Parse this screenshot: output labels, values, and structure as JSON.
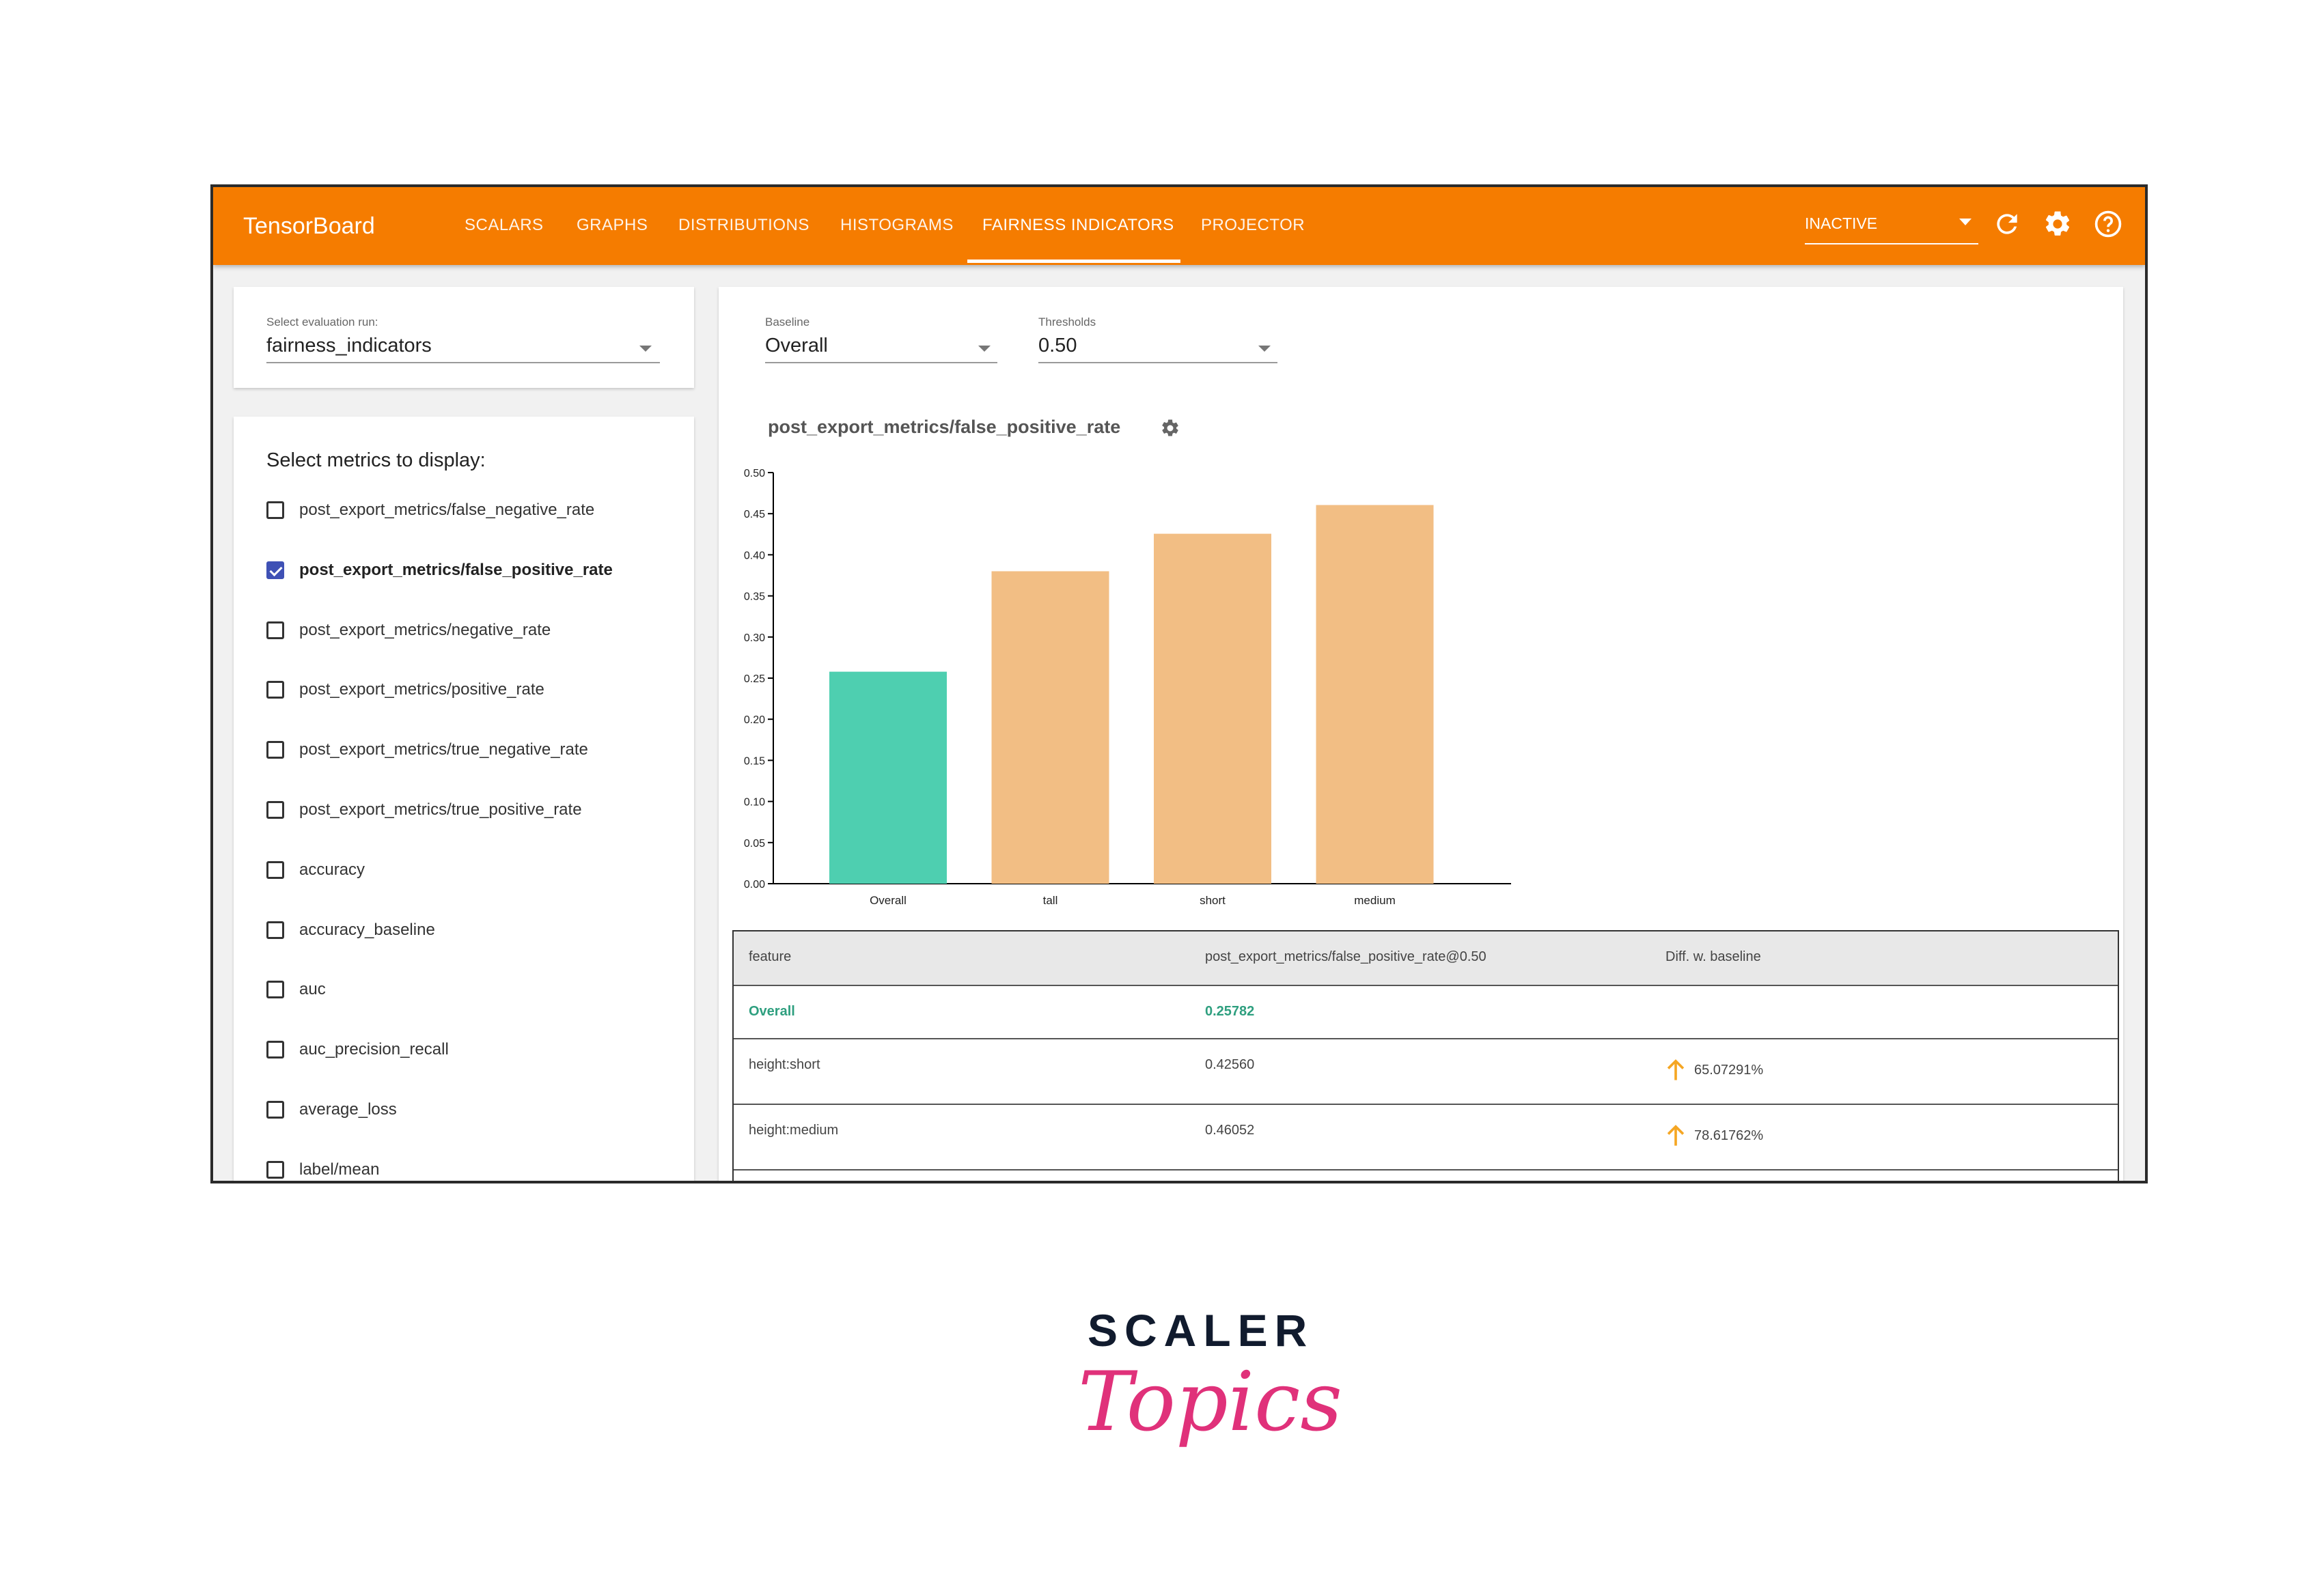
{
  "app": {
    "title": "TensorBoard",
    "tabs": [
      "SCALARS",
      "GRAPHS",
      "DISTRIBUTIONS",
      "HISTOGRAMS",
      "FAIRNESS INDICATORS",
      "PROJECTOR"
    ],
    "active_tab": "FAIRNESS INDICATORS",
    "run_status": "INACTIVE",
    "icons": [
      "refresh-icon",
      "settings-icon",
      "help-icon"
    ]
  },
  "eval_run": {
    "label": "Select evaluation run:",
    "value": "fairness_indicators"
  },
  "metrics": {
    "title": "Select metrics to display:",
    "items": [
      {
        "label": "post_export_metrics/false_negative_rate",
        "checked": false
      },
      {
        "label": "post_export_metrics/false_positive_rate",
        "checked": true
      },
      {
        "label": "post_export_metrics/negative_rate",
        "checked": false
      },
      {
        "label": "post_export_metrics/positive_rate",
        "checked": false
      },
      {
        "label": "post_export_metrics/true_negative_rate",
        "checked": false
      },
      {
        "label": "post_export_metrics/true_positive_rate",
        "checked": false
      },
      {
        "label": "accuracy",
        "checked": false
      },
      {
        "label": "accuracy_baseline",
        "checked": false
      },
      {
        "label": "auc",
        "checked": false
      },
      {
        "label": "auc_precision_recall",
        "checked": false
      },
      {
        "label": "average_loss",
        "checked": false
      },
      {
        "label": "label/mean",
        "checked": false
      }
    ]
  },
  "baseline": {
    "label": "Baseline",
    "value": "Overall"
  },
  "thresholds": {
    "label": "Thresholds",
    "value": "0.50"
  },
  "chart_data": {
    "type": "bar",
    "title": "post_export_metrics/false_positive_rate",
    "categories": [
      "Overall",
      "tall",
      "short",
      "medium"
    ],
    "values": [
      0.25782,
      0.38,
      0.4256,
      0.46052
    ],
    "colors": [
      "#4ecfb0",
      "#f2be84",
      "#f2be84",
      "#f2be84"
    ],
    "ylim": [
      0,
      0.5
    ],
    "yticks": [
      "0.00",
      "0.05",
      "0.10",
      "0.15",
      "0.20",
      "0.25",
      "0.30",
      "0.35",
      "0.40",
      "0.45",
      "0.50"
    ],
    "xlabel": "",
    "ylabel": ""
  },
  "table": {
    "headers": [
      "feature",
      "post_export_metrics/false_positive_rate@0.50",
      "Diff. w. baseline"
    ],
    "rows": [
      {
        "feature": "Overall",
        "value": "0.25782",
        "diff": ""
      },
      {
        "feature": "height:short",
        "value": "0.42560",
        "diff": "65.07291%"
      },
      {
        "feature": "height:medium",
        "value": "0.46052",
        "diff": "78.61762%"
      }
    ],
    "accent": "#f5a623"
  },
  "logo": {
    "line1": "SCALER",
    "line2": "Topics"
  }
}
